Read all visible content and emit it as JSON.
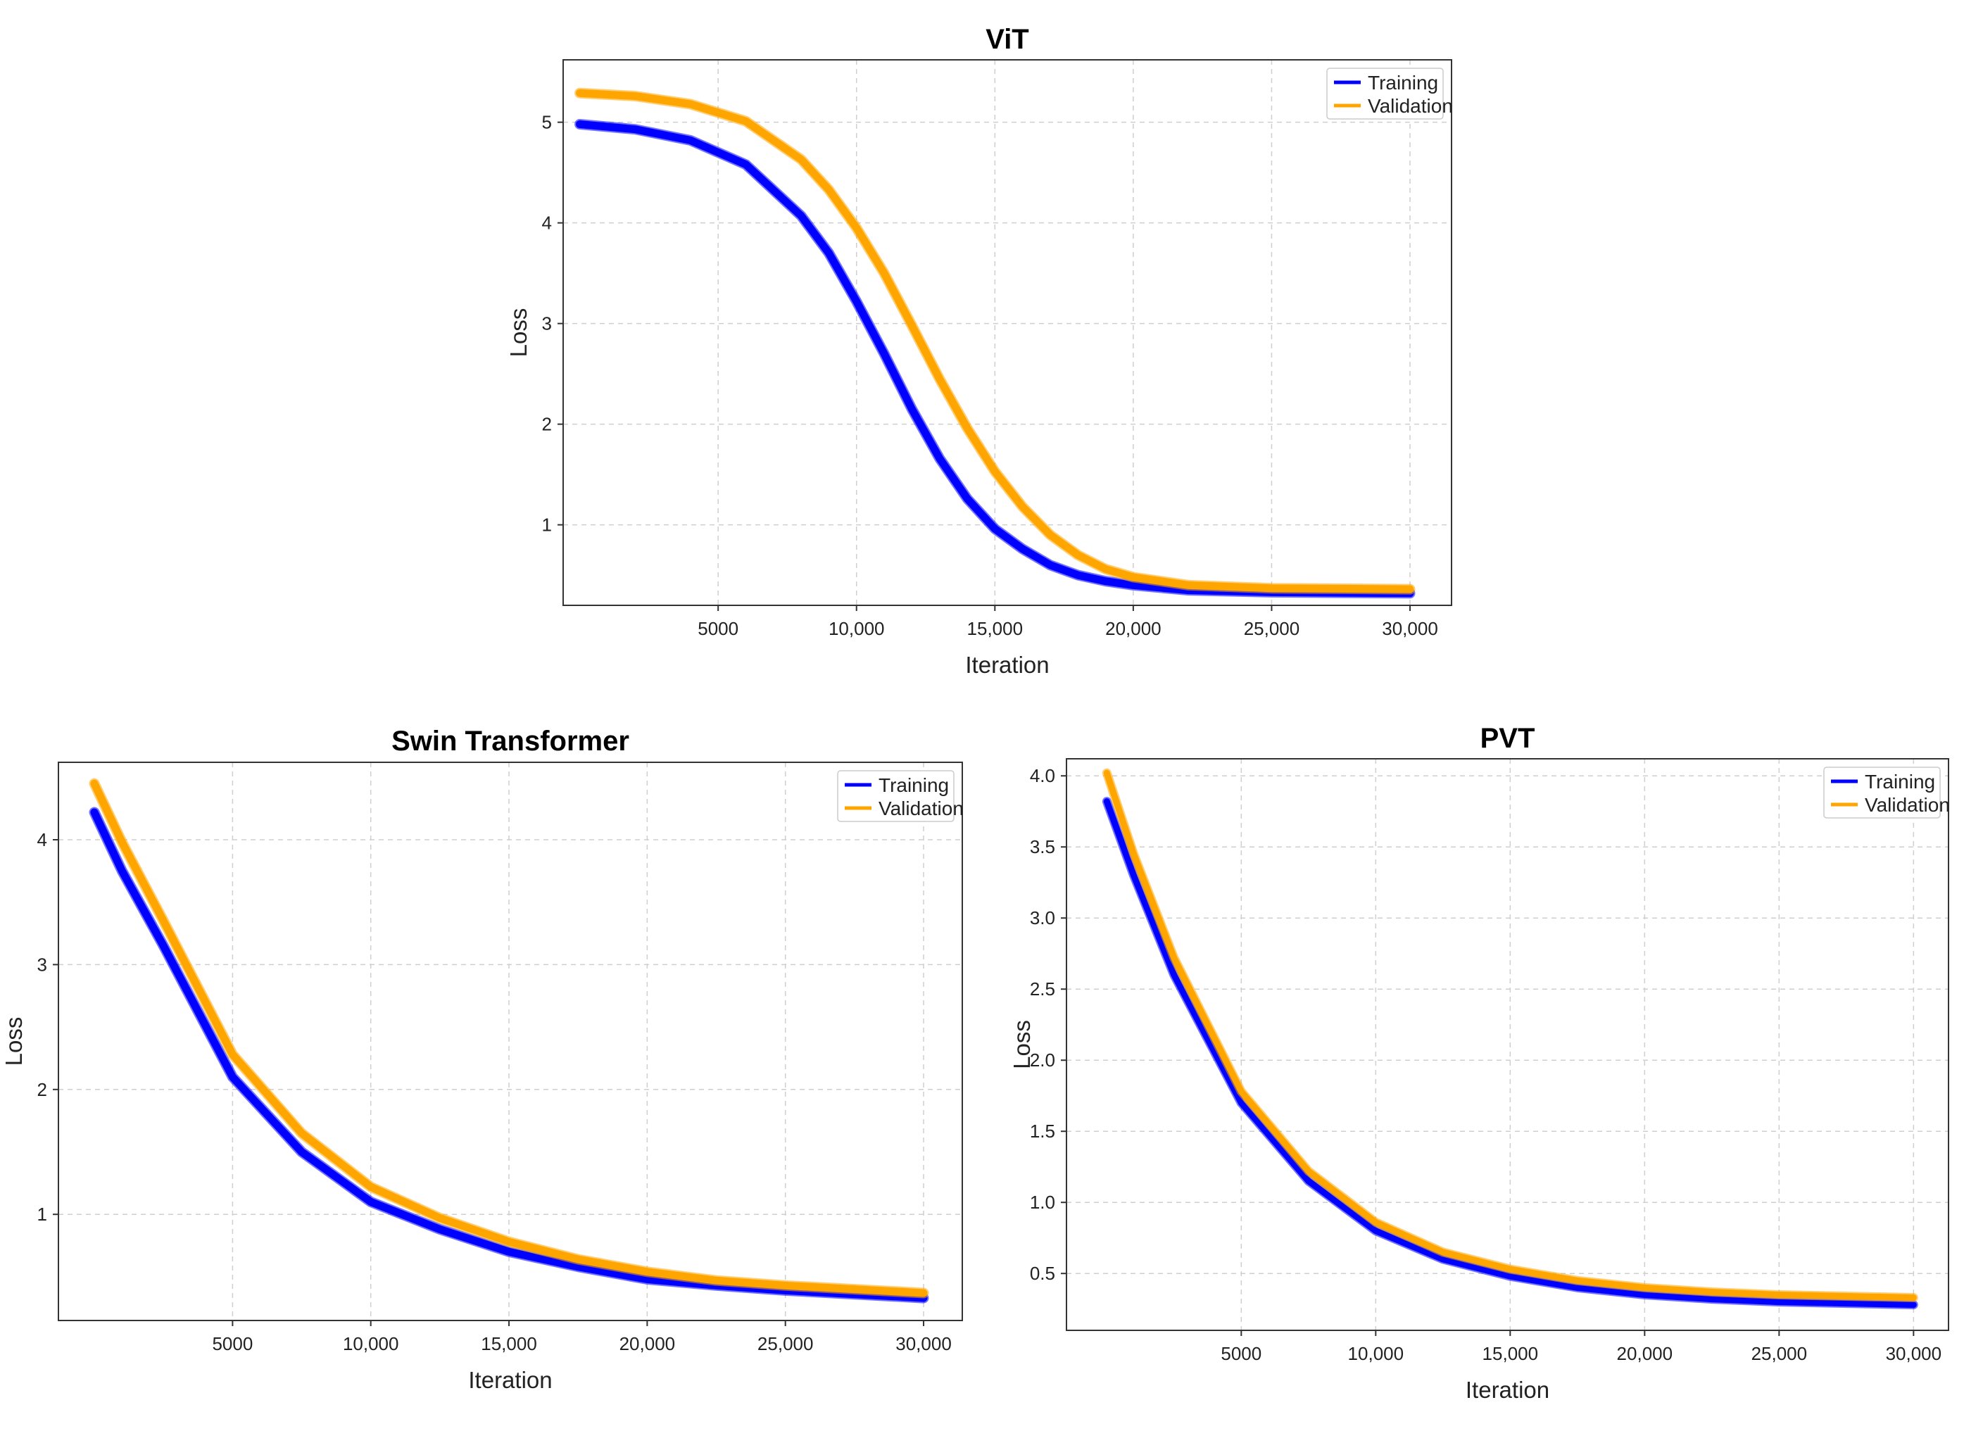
{
  "chart_data": [
    {
      "type": "line",
      "title": "ViT",
      "xlabel": "Iteration",
      "ylabel": "Loss",
      "xlim": [
        -600,
        31500
      ],
      "ylim": [
        0.2,
        5.62
      ],
      "x_ticks": [
        5000,
        10000,
        15000,
        20000,
        25000,
        30000
      ],
      "x_tick_labels": [
        "5000",
        "10,000",
        "15,000",
        "20,000",
        "25,000",
        "30,000"
      ],
      "y_ticks": [
        1,
        2,
        3,
        4,
        5
      ],
      "y_tick_labels": [
        "1",
        "2",
        "3",
        "4",
        "5"
      ],
      "grid": true,
      "legend_position": "top-right",
      "series": [
        {
          "name": "Training",
          "color": "#0000ff",
          "x": [
            0,
            2000,
            4000,
            6000,
            8000,
            9000,
            10000,
            11000,
            12000,
            13000,
            14000,
            15000,
            16000,
            17000,
            18000,
            19000,
            20000,
            22000,
            25000,
            30000
          ],
          "values": [
            4.98,
            4.93,
            4.82,
            4.58,
            4.07,
            3.7,
            3.22,
            2.7,
            2.15,
            1.66,
            1.26,
            0.96,
            0.76,
            0.6,
            0.5,
            0.44,
            0.4,
            0.35,
            0.33,
            0.32
          ]
        },
        {
          "name": "Validation",
          "color": "#ffa500",
          "x": [
            0,
            2000,
            4000,
            6000,
            8000,
            9000,
            10000,
            11000,
            12000,
            13000,
            14000,
            15000,
            16000,
            17000,
            18000,
            19000,
            20000,
            22000,
            25000,
            30000
          ],
          "values": [
            5.29,
            5.26,
            5.18,
            5.01,
            4.63,
            4.33,
            3.95,
            3.5,
            2.98,
            2.45,
            1.96,
            1.53,
            1.18,
            0.9,
            0.7,
            0.56,
            0.48,
            0.4,
            0.37,
            0.36
          ]
        }
      ]
    },
    {
      "type": "line",
      "title": "Swin Transformer",
      "xlabel": "Iteration",
      "ylabel": "Loss",
      "xlim": [
        -1300,
        31400
      ],
      "ylim": [
        0.15,
        4.62
      ],
      "x_ticks": [
        5000,
        10000,
        15000,
        20000,
        25000,
        30000
      ],
      "x_tick_labels": [
        "5000",
        "10,000",
        "15,000",
        "20,000",
        "25,000",
        "30,000"
      ],
      "y_ticks": [
        1,
        2,
        3,
        4
      ],
      "y_tick_labels": [
        "1",
        "2",
        "3",
        "4"
      ],
      "grid": true,
      "legend_position": "top-right",
      "series": [
        {
          "name": "Training",
          "color": "#0000ff",
          "x": [
            0,
            1000,
            2500,
            5000,
            7500,
            10000,
            12500,
            15000,
            17500,
            20000,
            22500,
            25000,
            27500,
            30000
          ],
          "values": [
            4.22,
            3.75,
            3.15,
            2.1,
            1.5,
            1.1,
            0.88,
            0.7,
            0.58,
            0.48,
            0.43,
            0.39,
            0.36,
            0.33
          ]
        },
        {
          "name": "Validation",
          "color": "#ffa500",
          "x": [
            0,
            1000,
            2500,
            5000,
            7500,
            10000,
            12500,
            15000,
            17500,
            20000,
            22500,
            25000,
            27500,
            30000
          ],
          "values": [
            4.45,
            3.98,
            3.35,
            2.28,
            1.65,
            1.22,
            0.97,
            0.78,
            0.64,
            0.54,
            0.47,
            0.43,
            0.4,
            0.37
          ]
        }
      ]
    },
    {
      "type": "line",
      "title": "PVT",
      "xlabel": "Iteration",
      "ylabel": "Loss",
      "xlim": [
        -1500,
        31300
      ],
      "ylim": [
        0.1,
        4.12
      ],
      "x_ticks": [
        5000,
        10000,
        15000,
        20000,
        25000,
        30000
      ],
      "x_tick_labels": [
        "5000",
        "10,000",
        "15,000",
        "20,000",
        "25,000",
        "30,000"
      ],
      "y_ticks": [
        0.5,
        1.0,
        1.5,
        2.0,
        2.5,
        3.0,
        3.5,
        4.0
      ],
      "y_tick_labels": [
        "0.5",
        "1.0",
        "1.5",
        "2.0",
        "2.5",
        "3.0",
        "3.5",
        "4.0"
      ],
      "grid": true,
      "legend_position": "top-right",
      "series": [
        {
          "name": "Training",
          "color": "#0000ff",
          "x": [
            0,
            1000,
            2500,
            5000,
            7500,
            10000,
            12500,
            15000,
            17500,
            20000,
            22500,
            25000,
            27500,
            30000
          ],
          "values": [
            3.82,
            3.3,
            2.6,
            1.7,
            1.15,
            0.8,
            0.6,
            0.48,
            0.4,
            0.35,
            0.32,
            0.3,
            0.29,
            0.28
          ]
        },
        {
          "name": "Validation",
          "color": "#ffa500",
          "x": [
            0,
            1000,
            2500,
            5000,
            7500,
            10000,
            12500,
            15000,
            17500,
            20000,
            22500,
            25000,
            27500,
            30000
          ],
          "values": [
            4.02,
            3.45,
            2.72,
            1.78,
            1.22,
            0.86,
            0.65,
            0.53,
            0.45,
            0.4,
            0.37,
            0.35,
            0.34,
            0.33
          ]
        }
      ]
    }
  ]
}
